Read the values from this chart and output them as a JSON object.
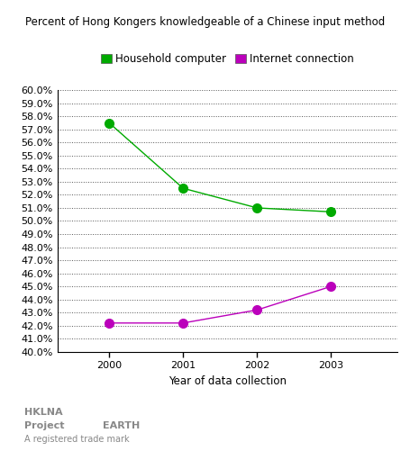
{
  "title": "Percent of Hong Kongers knowledgeable of a Chinese input method",
  "xlabel": "Year of data collection",
  "years": [
    2000,
    2001,
    2002,
    2003
  ],
  "household_computer": [
    57.5,
    52.5,
    51.0,
    50.7
  ],
  "internet_connection": [
    42.2,
    42.2,
    43.2,
    45.0
  ],
  "household_color": "#00AA00",
  "internet_color": "#BB00BB",
  "ylim_min": 40.0,
  "ylim_max": 60.0,
  "ytick_step": 1.0,
  "background_color": "#ffffff",
  "legend_label_household": "Household computer",
  "legend_label_internet": "Internet connection",
  "watermark_text1": "HKLNA",
  "watermark_text2": "Project",
  "watermark_text3": "EARTH",
  "watermark_text4": "A registered trade mark",
  "title_fontsize": 8.5,
  "legend_fontsize": 8.5,
  "tick_fontsize": 8,
  "xlabel_fontsize": 8.5
}
